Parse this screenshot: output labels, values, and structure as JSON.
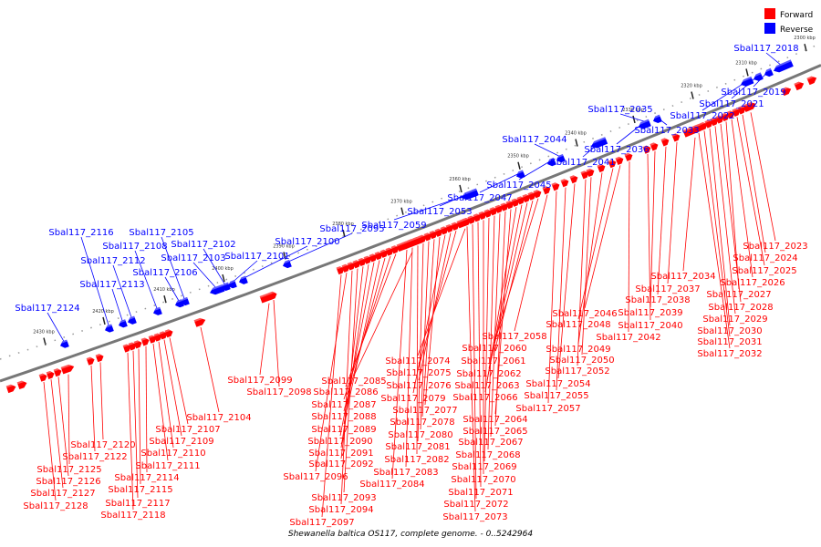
{
  "title": "Shewanella baltica OS117, complete genome. - 0..5242964",
  "legend": [
    {
      "label": "Forward",
      "color": "#ff0000"
    },
    {
      "label": "Reverse",
      "color": "#0000ff"
    }
  ],
  "colors": {
    "forward": "#ff0000",
    "reverse": "#0000ff"
  },
  "ticks": [
    "2300 kbp",
    "2310 kbp",
    "2320 kbp",
    "2330 kbp",
    "2340 kbp",
    "2350 kbp",
    "2360 kbp",
    "2370 kbp",
    "2380 kbp",
    "2390 kbp",
    "2400 kbp",
    "2410 kbp",
    "2420 kbp",
    "2430 kbp"
  ],
  "reverse_genes": [
    "Sbal117_2018",
    "Sbal117_2019",
    "Sbal117_2021",
    "Sbal117_2022",
    "Sbal117_2033",
    "Sbal117_2035",
    "Sbal117_2036",
    "Sbal117_2041",
    "Sbal117_2044",
    "Sbal117_2045",
    "Sbal117_2047",
    "Sbal117_2053",
    "Sbal117_2059",
    "Sbal117_2095",
    "Sbal117_2100",
    "Sbal117_2101",
    "Sbal117_2102",
    "Sbal117_2103",
    "Sbal117_2105",
    "Sbal117_2106",
    "Sbal117_2108",
    "Sbal117_2112",
    "Sbal117_2113",
    "Sbal117_2116",
    "Sbal117_2124"
  ],
  "forward_genes": [
    "Sbal117_2023",
    "Sbal117_2024",
    "Sbal117_2025",
    "Sbal117_2026",
    "Sbal117_2027",
    "Sbal117_2028",
    "Sbal117_2029",
    "Sbal117_2030",
    "Sbal117_2031",
    "Sbal117_2032",
    "Sbal117_2034",
    "Sbal117_2037",
    "Sbal117_2038",
    "Sbal117_2039",
    "Sbal117_2040",
    "Sbal117_2042",
    "Sbal117_2046",
    "Sbal117_2048",
    "Sbal117_2049",
    "Sbal117_2050",
    "Sbal117_2052",
    "Sbal117_2054",
    "Sbal117_2055",
    "Sbal117_2057",
    "Sbal117_2058",
    "Sbal117_2060",
    "Sbal117_2061",
    "Sbal117_2062",
    "Sbal117_2063",
    "Sbal117_2064",
    "Sbal117_2065",
    "Sbal117_2066",
    "Sbal117_2067",
    "Sbal117_2068",
    "Sbal117_2069",
    "Sbal117_2070",
    "Sbal117_2071",
    "Sbal117_2072",
    "Sbal117_2073",
    "Sbal117_2074",
    "Sbal117_2075",
    "Sbal117_2076",
    "Sbal117_2077",
    "Sbal117_2078",
    "Sbal117_2079",
    "Sbal117_2080",
    "Sbal117_2081",
    "Sbal117_2082",
    "Sbal117_2083",
    "Sbal117_2084",
    "Sbal117_2085",
    "Sbal117_2086",
    "Sbal117_2087",
    "Sbal117_2088",
    "Sbal117_2089",
    "Sbal117_2090",
    "Sbal117_2091",
    "Sbal117_2092",
    "Sbal117_2093",
    "Sbal117_2094",
    "Sbal117_2096",
    "Sbal117_2097",
    "Sbal117_2098",
    "Sbal117_2099",
    "Sbal117_2104",
    "Sbal117_2107",
    "Sbal117_2109",
    "Sbal117_2110",
    "Sbal117_2111",
    "Sbal117_2114",
    "Sbal117_2115",
    "Sbal117_2117",
    "Sbal117_2118",
    "Sbal117_2120",
    "Sbal117_2122",
    "Sbal117_2125",
    "Sbal117_2126",
    "Sbal117_2127",
    "Sbal117_2128"
  ]
}
